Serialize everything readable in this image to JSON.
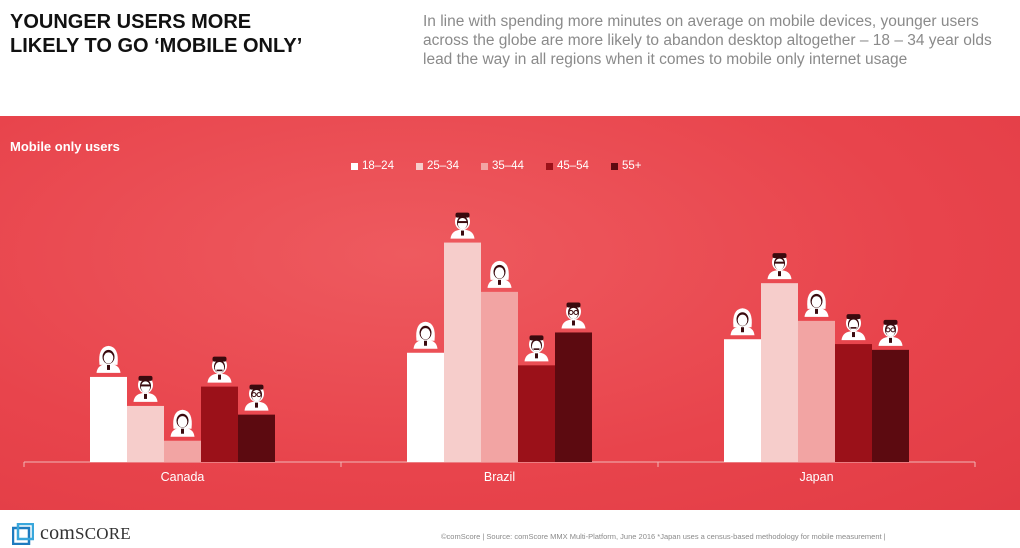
{
  "header": {
    "title_line1": "YOUNGER USERS MORE",
    "title_line2": "LIKELY TO GO ‘MOBILE ONLY’",
    "intro": "In line with spending more minutes on average on mobile devices, younger users across the globe are more likely to abandon desktop altogether – 18 – 34 year olds lead the way in all regions when it comes to mobile only internet usage"
  },
  "chart_data": {
    "type": "bar",
    "title": "Mobile only users",
    "categories": [
      "Canada",
      "Brazil",
      "Japan"
    ],
    "series": [
      {
        "name": "18–24",
        "values": [
          88,
          113,
          127
        ],
        "color": "#ffffff",
        "icon": "young-woman-icon"
      },
      {
        "name": "25–34",
        "values": [
          58,
          227,
          185
        ],
        "color": "#f6cdcb",
        "icon": "young-man-icon"
      },
      {
        "name": "35–44",
        "values": [
          22,
          176,
          146
        ],
        "color": "#f2a4a3",
        "icon": "woman-icon"
      },
      {
        "name": "45–54",
        "values": [
          78,
          100,
          122
        ],
        "color": "#9b1119",
        "icon": "man-icon"
      },
      {
        "name": "55+",
        "values": [
          49,
          134,
          116
        ],
        "color": "#5c0a10",
        "icon": "senior-man-icon"
      }
    ],
    "ylim": [
      0,
      240
    ],
    "xlabel": "",
    "ylabel": "",
    "grid": false,
    "legend": "top-center"
  },
  "footer": {
    "logo_text": "comScore",
    "source": "©comScore  |  Source: comScore MMX Multi-Platform, June 2016 *Japan uses a census-based methodology for mobile measurement  |"
  }
}
